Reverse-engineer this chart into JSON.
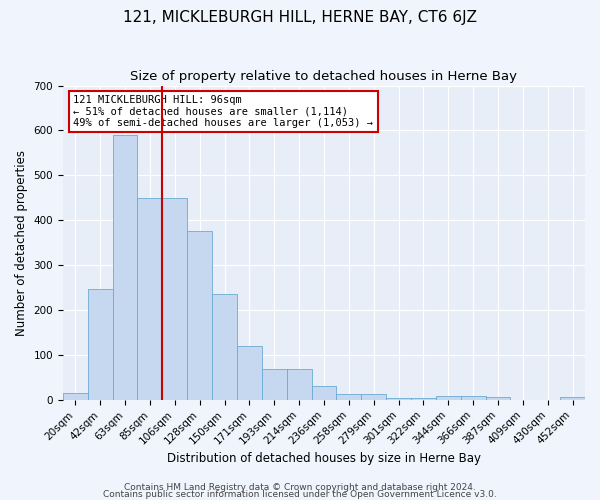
{
  "title": "121, MICKLEBURGH HILL, HERNE BAY, CT6 6JZ",
  "subtitle": "Size of property relative to detached houses in Herne Bay",
  "xlabel": "Distribution of detached houses by size in Herne Bay",
  "ylabel": "Number of detached properties",
  "categories": [
    "20sqm",
    "42sqm",
    "63sqm",
    "85sqm",
    "106sqm",
    "128sqm",
    "150sqm",
    "171sqm",
    "193sqm",
    "214sqm",
    "236sqm",
    "258sqm",
    "279sqm",
    "301sqm",
    "322sqm",
    "344sqm",
    "366sqm",
    "387sqm",
    "409sqm",
    "430sqm",
    "452sqm"
  ],
  "values": [
    15,
    248,
    590,
    450,
    450,
    375,
    235,
    120,
    68,
    68,
    30,
    12,
    12,
    5,
    5,
    9,
    9,
    7,
    0,
    0,
    7
  ],
  "bar_color": "#c5d8f0",
  "bar_edge_color": "#6aaad4",
  "property_line_x": 4.0,
  "property_line_color": "#cc0000",
  "annotation_text": "121 MICKLEBURGH HILL: 96sqm\n← 51% of detached houses are smaller (1,114)\n49% of semi-detached houses are larger (1,053) →",
  "annotation_box_color": "#ffffff",
  "annotation_box_edge_color": "#cc0000",
  "ylim": [
    0,
    700
  ],
  "yticks": [
    0,
    100,
    200,
    300,
    400,
    500,
    600,
    700
  ],
  "footer_line1": "Contains HM Land Registry data © Crown copyright and database right 2024.",
  "footer_line2": "Contains public sector information licensed under the Open Government Licence v3.0.",
  "fig_bg_color": "#f0f4fc",
  "plot_bg_color": "#e8eef8",
  "grid_color": "#ffffff",
  "title_fontsize": 11,
  "subtitle_fontsize": 9.5,
  "axis_label_fontsize": 8.5,
  "tick_fontsize": 7.5,
  "annotation_fontsize": 7.5,
  "footer_fontsize": 6.5
}
